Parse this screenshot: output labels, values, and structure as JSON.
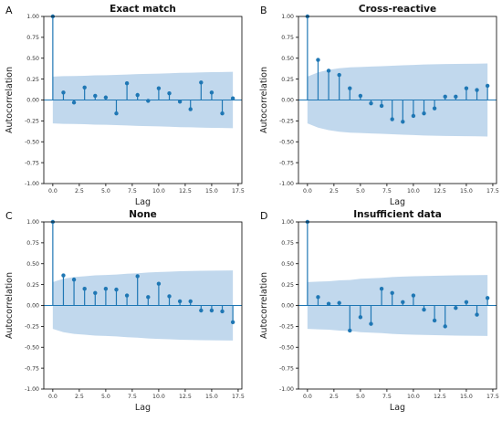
{
  "figure": {
    "stem_color": "#1f77b4",
    "band_color": "#a6c8e6",
    "axis_color": "#000000"
  },
  "chart_data": [
    {
      "panel_letter": "A",
      "title": "Exact match",
      "type": "stem",
      "xlabel": "Lag",
      "ylabel": "Autocorrelation",
      "xlim": [
        -0.85,
        17.85
      ],
      "ylim": [
        -1.0,
        1.0
      ],
      "xticks": [
        "0.0",
        "2.5",
        "5.0",
        "7.5",
        "10.0",
        "12.5",
        "15.0",
        "17.5"
      ],
      "xtick_values": [
        0,
        2.5,
        5,
        7.5,
        10,
        12.5,
        15,
        17.5
      ],
      "yticks": [
        "-1.00",
        "-0.75",
        "-0.50",
        "-0.25",
        "0.00",
        "0.25",
        "0.50",
        "0.75",
        "1.00"
      ],
      "ytick_values": [
        -1,
        -0.75,
        -0.5,
        -0.25,
        0,
        0.25,
        0.5,
        0.75,
        1
      ],
      "lags": [
        0,
        1,
        2,
        3,
        4,
        5,
        6,
        7,
        8,
        9,
        10,
        11,
        12,
        13,
        14,
        15,
        16,
        17
      ],
      "values": [
        1.0,
        0.09,
        -0.03,
        0.15,
        0.05,
        0.03,
        -0.16,
        0.2,
        0.06,
        -0.01,
        0.14,
        0.08,
        -0.02,
        -0.11,
        0.21,
        0.09,
        -0.16,
        0.02
      ],
      "conf_upper": [
        0.28,
        0.285,
        0.287,
        0.29,
        0.295,
        0.297,
        0.3,
        0.305,
        0.31,
        0.313,
        0.315,
        0.32,
        0.325,
        0.327,
        0.33,
        0.333,
        0.335,
        0.338
      ]
    },
    {
      "panel_letter": "B",
      "title": "Cross-reactive",
      "type": "stem",
      "xlabel": "Lag",
      "ylabel": "Autocorrelation",
      "xlim": [
        -0.85,
        17.85
      ],
      "ylim": [
        -1.0,
        1.0
      ],
      "xticks": [
        "0.0",
        "2.5",
        "5.0",
        "7.5",
        "10.0",
        "12.5",
        "15.0",
        "17.5"
      ],
      "xtick_values": [
        0,
        2.5,
        5,
        7.5,
        10,
        12.5,
        15,
        17.5
      ],
      "yticks": [
        "-1.00",
        "-0.75",
        "-0.50",
        "-0.25",
        "0.00",
        "0.25",
        "0.50",
        "0.75",
        "1.00"
      ],
      "ytick_values": [
        -1,
        -0.75,
        -0.5,
        -0.25,
        0,
        0.25,
        0.5,
        0.75,
        1
      ],
      "lags": [
        0,
        1,
        2,
        3,
        4,
        5,
        6,
        7,
        8,
        9,
        10,
        11,
        12,
        13,
        14,
        15,
        16,
        17
      ],
      "values": [
        1.0,
        0.48,
        0.35,
        0.3,
        0.14,
        0.05,
        -0.04,
        -0.07,
        -0.23,
        -0.26,
        -0.19,
        -0.16,
        -0.1,
        0.04,
        0.04,
        0.14,
        0.12,
        0.17
      ],
      "conf_upper": [
        0.28,
        0.33,
        0.36,
        0.38,
        0.39,
        0.395,
        0.4,
        0.405,
        0.41,
        0.415,
        0.42,
        0.425,
        0.427,
        0.43,
        0.432,
        0.433,
        0.435,
        0.437
      ]
    },
    {
      "panel_letter": "C",
      "title": "None",
      "type": "stem",
      "xlabel": "Lag",
      "ylabel": "Autocorrelation",
      "xlim": [
        -0.85,
        17.85
      ],
      "ylim": [
        -1.0,
        1.0
      ],
      "xticks": [
        "0.0",
        "2.5",
        "5.0",
        "7.5",
        "10.0",
        "12.5",
        "15.0",
        "17.5"
      ],
      "xtick_values": [
        0,
        2.5,
        5,
        7.5,
        10,
        12.5,
        15,
        17.5
      ],
      "yticks": [
        "-1.00",
        "-0.75",
        "-0.50",
        "-0.25",
        "0.00",
        "0.25",
        "0.50",
        "0.75",
        "1.00"
      ],
      "ytick_values": [
        -1,
        -0.75,
        -0.5,
        -0.25,
        0,
        0.25,
        0.5,
        0.75,
        1
      ],
      "lags": [
        0,
        1,
        2,
        3,
        4,
        5,
        6,
        7,
        8,
        9,
        10,
        11,
        12,
        13,
        14,
        15,
        16,
        17
      ],
      "values": [
        1.0,
        0.36,
        0.31,
        0.2,
        0.15,
        0.2,
        0.19,
        0.12,
        0.35,
        0.1,
        0.26,
        0.11,
        0.05,
        0.05,
        -0.06,
        -0.06,
        -0.07,
        -0.2
      ],
      "conf_upper": [
        0.28,
        0.32,
        0.34,
        0.35,
        0.36,
        0.365,
        0.37,
        0.38,
        0.385,
        0.395,
        0.4,
        0.405,
        0.41,
        0.412,
        0.415,
        0.417,
        0.418,
        0.42
      ]
    },
    {
      "panel_letter": "D",
      "title": "Insufficient data",
      "type": "stem",
      "xlabel": "Lag",
      "ylabel": "Autocorrelation",
      "xlim": [
        -0.85,
        17.85
      ],
      "ylim": [
        -1.0,
        1.0
      ],
      "xticks": [
        "0.0",
        "2.5",
        "5.0",
        "7.5",
        "10.0",
        "12.5",
        "15.0",
        "17.5"
      ],
      "xtick_values": [
        0,
        2.5,
        5,
        7.5,
        10,
        12.5,
        15,
        17.5
      ],
      "yticks": [
        "-1.00",
        "-0.75",
        "-0.50",
        "-0.25",
        "0.00",
        "0.25",
        "0.50",
        "0.75",
        "1.00"
      ],
      "ytick_values": [
        -1,
        -0.75,
        -0.5,
        -0.25,
        0,
        0.25,
        0.5,
        0.75,
        1
      ],
      "lags": [
        0,
        1,
        2,
        3,
        4,
        5,
        6,
        7,
        8,
        9,
        10,
        11,
        12,
        13,
        14,
        15,
        16,
        17
      ],
      "values": [
        1.0,
        0.1,
        0.02,
        0.03,
        -0.3,
        -0.14,
        -0.22,
        0.2,
        0.15,
        0.04,
        0.12,
        -0.05,
        -0.18,
        -0.25,
        -0.03,
        0.04,
        -0.11,
        0.09
      ],
      "conf_upper": [
        0.28,
        0.285,
        0.29,
        0.3,
        0.305,
        0.32,
        0.325,
        0.33,
        0.34,
        0.345,
        0.35,
        0.352,
        0.355,
        0.358,
        0.36,
        0.362,
        0.364,
        0.365
      ]
    }
  ]
}
